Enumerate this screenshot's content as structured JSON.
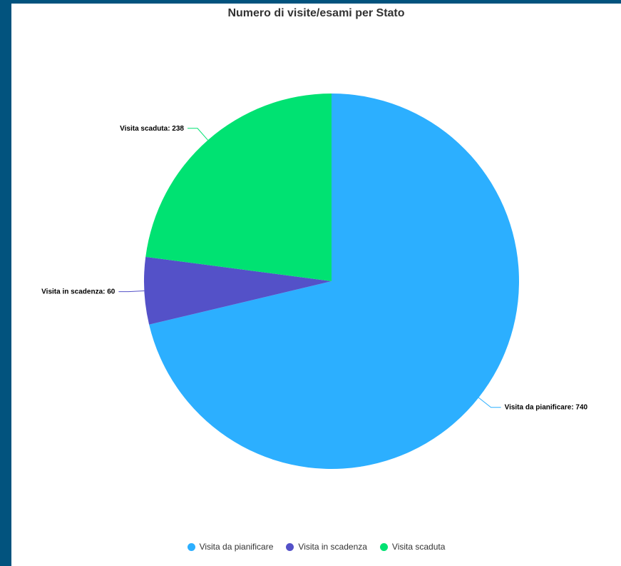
{
  "chart_data": {
    "type": "pie",
    "title": "Numero di visite/esami per Stato",
    "legend_position": "bottom",
    "slices": [
      {
        "name": "Visita da pianificare",
        "value": 740,
        "color": "#2cafff",
        "label": "Visita da pianificare: 740"
      },
      {
        "name": "Visita in scadenza",
        "value": 60,
        "color": "#5451c8",
        "label": "Visita in scadenza: 60"
      },
      {
        "name": "Visita scaduta",
        "value": 238,
        "color": "#00e272",
        "label": "Visita scaduta: 238"
      }
    ]
  }
}
